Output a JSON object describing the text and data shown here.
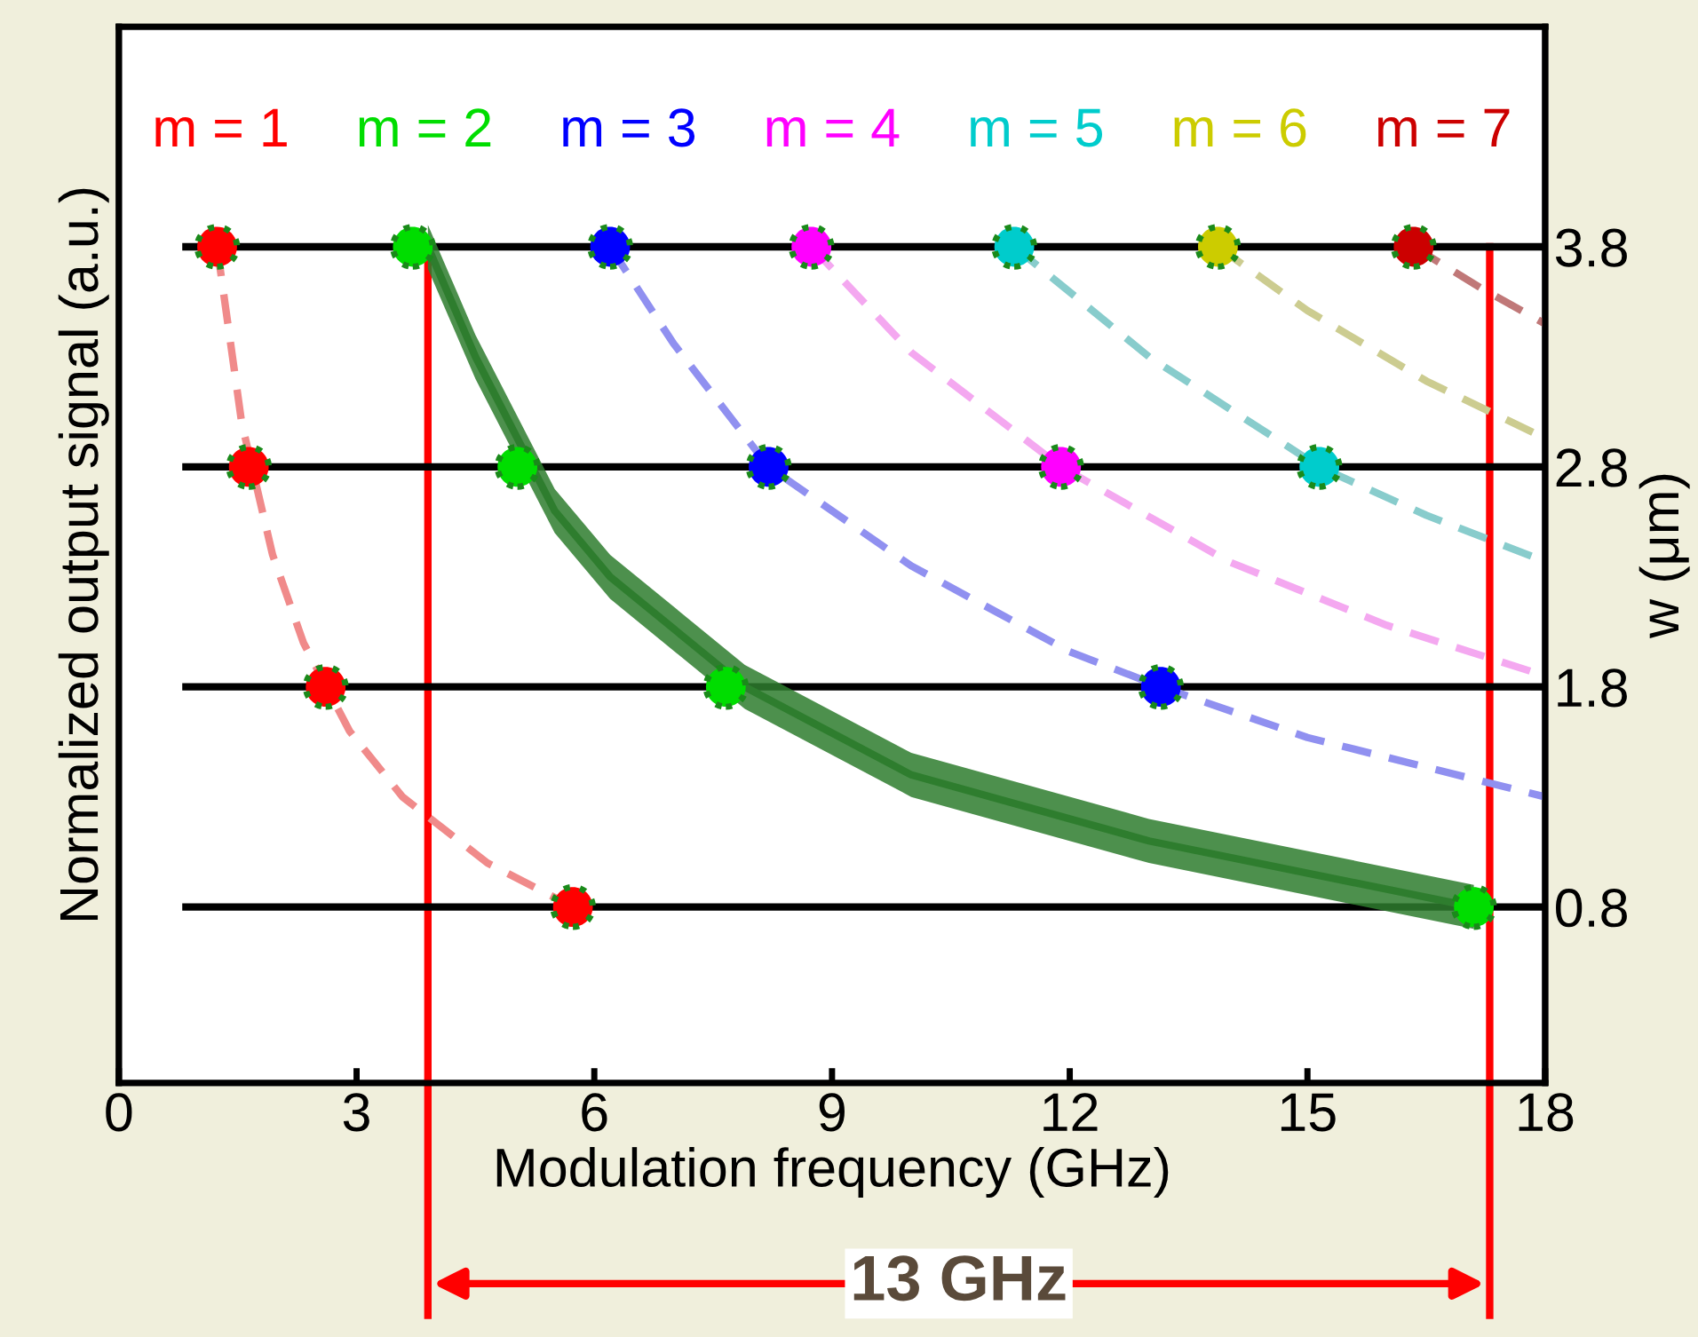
{
  "chart_data": {
    "type": "scatter",
    "xlabel": "Modulation frequency (GHz)",
    "ylabel": "Normalized output signal (a.u.)",
    "y2label": "w (μm)",
    "xlim": [
      0,
      18
    ],
    "xticks": [
      0,
      3,
      6,
      9,
      12,
      15,
      18
    ],
    "y2lim": [
      0,
      4.8
    ],
    "y2ticks": [
      0.8,
      1.8,
      2.8,
      3.8
    ],
    "grid": false,
    "legend": "top",
    "marker": "circle",
    "series": [
      {
        "type": "line",
        "marker": "none",
        "color": "#000000",
        "axis": "y2",
        "x": [
          0.8,
          18
        ],
        "values": [
          3.8,
          3.8
        ]
      },
      {
        "type": "line",
        "marker": "none",
        "color": "#000000",
        "axis": "y2",
        "x": [
          0.8,
          18
        ],
        "values": [
          2.8,
          2.8
        ]
      },
      {
        "type": "line",
        "marker": "none",
        "color": "#000000",
        "axis": "y2",
        "x": [
          0.8,
          18
        ],
        "values": [
          1.8,
          1.8
        ]
      },
      {
        "type": "line",
        "marker": "none",
        "color": "#000000",
        "axis": "y2",
        "x": [
          0.8,
          18
        ],
        "values": [
          0.8,
          0.8
        ]
      },
      {
        "type": "line",
        "marker": "none",
        "color": "#f08a8a",
        "axis": "y2",
        "line_style": "dashed",
        "x": [
          1.24,
          1.55,
          1.94,
          2.33,
          2.91,
          3.58,
          4.65,
          5.73
        ],
        "values": [
          3.8,
          3.0,
          2.4,
          2.0,
          1.6,
          1.3,
          1.0,
          0.8
        ]
      },
      {
        "type": "line",
        "marker": "none",
        "color": "#2e7d2e",
        "axis": "y2",
        "x": [
          3.9,
          4.5,
          5.5,
          6.2,
          7.9,
          10.0,
          13.0,
          17.1
        ],
        "values": [
          3.8,
          3.3,
          2.6,
          2.3,
          1.8,
          1.4,
          1.1,
          0.8
        ],
        "lower": [
          3.7,
          3.2,
          2.5,
          2.2,
          1.7,
          1.3,
          1.0,
          0.7
        ],
        "upper": [
          3.9,
          3.4,
          2.7,
          2.4,
          1.9,
          1.5,
          1.2,
          0.9
        ]
      },
      {
        "type": "line",
        "marker": "none",
        "color": "#9090f0",
        "axis": "y2",
        "line_style": "dashed",
        "x": [
          6.2,
          7.0,
          8.2,
          10.0,
          12.0,
          13.15,
          15.0,
          18.0
        ],
        "values": [
          3.8,
          3.36,
          2.8,
          2.35,
          1.96,
          1.8,
          1.57,
          1.3
        ]
      },
      {
        "type": "line",
        "marker": "none",
        "color": "#f4a8f0",
        "axis": "y2",
        "line_style": "dashed",
        "x": [
          8.74,
          10.0,
          11.89,
          14.0,
          16.0,
          18.0
        ],
        "values": [
          3.8,
          3.32,
          2.8,
          2.37,
          2.08,
          1.85
        ]
      },
      {
        "type": "line",
        "marker": "none",
        "color": "#88cccc",
        "axis": "y2",
        "line_style": "dashed",
        "x": [
          11.3,
          13.0,
          15.15,
          16.5,
          18.0
        ],
        "values": [
          3.8,
          3.3,
          2.8,
          2.58,
          2.37
        ]
      },
      {
        "type": "line",
        "marker": "none",
        "color": "#cccc90",
        "axis": "y2",
        "line_style": "dashed",
        "x": [
          13.87,
          15.0,
          16.5,
          18.0
        ],
        "values": [
          3.8,
          3.51,
          3.19,
          2.93
        ]
      },
      {
        "type": "line",
        "marker": "none",
        "color": "#c07878",
        "axis": "y2",
        "line_style": "dashed",
        "x": [
          16.34,
          17.2,
          18.0
        ],
        "values": [
          3.8,
          3.61,
          3.45
        ]
      },
      {
        "name": "m = 1",
        "color": "#ff0000",
        "axis": "y2",
        "x": [
          1.24,
          1.64,
          2.61,
          5.73
        ],
        "values": [
          3.8,
          2.8,
          1.8,
          0.8
        ]
      },
      {
        "name": "m = 2",
        "color": "#00dd00",
        "axis": "y2",
        "x": [
          3.71,
          5.03,
          7.66,
          17.1
        ],
        "values": [
          3.8,
          2.8,
          1.8,
          0.8
        ]
      },
      {
        "name": "m = 3",
        "color": "#0000ff",
        "axis": "y2",
        "x": [
          6.2,
          8.2,
          13.15
        ],
        "values": [
          3.8,
          2.8,
          1.8
        ]
      },
      {
        "name": "m = 4",
        "color": "#ff00ff",
        "axis": "y2",
        "x": [
          8.74,
          11.89
        ],
        "values": [
          3.8,
          2.8
        ]
      },
      {
        "name": "m = 5",
        "color": "#00cccc",
        "axis": "y2",
        "x": [
          11.3,
          15.15
        ],
        "values": [
          3.8,
          2.8
        ]
      },
      {
        "name": "m = 6",
        "color": "#cccc00",
        "axis": "y2",
        "x": [
          13.87
        ],
        "values": [
          3.8
        ]
      },
      {
        "name": "m = 7",
        "color": "#cc0000",
        "axis": "y2",
        "x": [
          16.34
        ],
        "values": [
          3.8
        ]
      }
    ],
    "ref_lines": [
      {
        "axis": "x",
        "value": 3.9,
        "color": "#ff0000"
      },
      {
        "axis": "x",
        "value": 17.3,
        "color": "#ff0000"
      }
    ],
    "annotations": [
      "13 GHz"
    ]
  }
}
